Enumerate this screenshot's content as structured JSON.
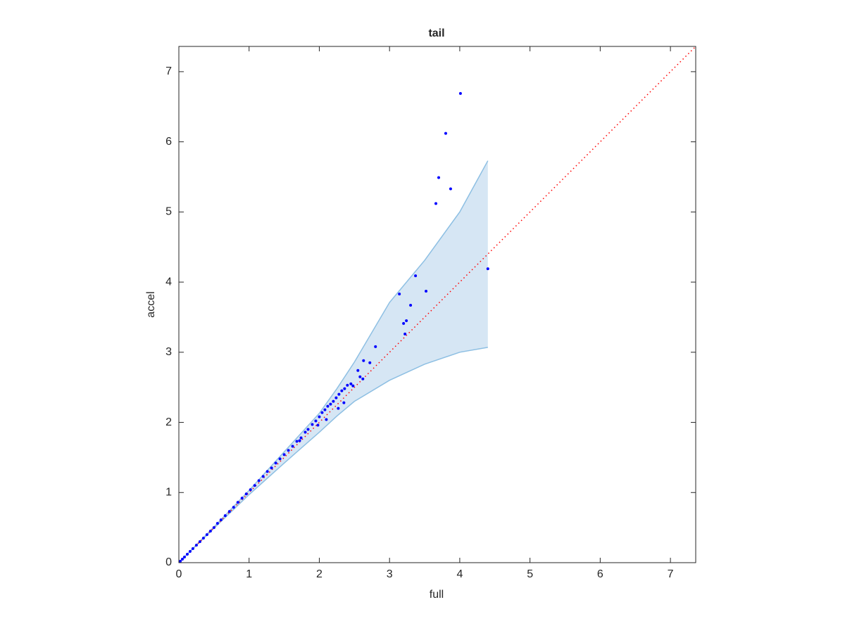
{
  "chart_data": {
    "type": "scatter",
    "title": "tail",
    "x_label": "full",
    "y_label": "accel",
    "xlim": [
      0,
      7.36
    ],
    "ylim": [
      0,
      7.36
    ],
    "xticks": [
      0,
      1,
      2,
      3,
      4,
      5,
      6,
      7
    ],
    "yticks": [
      0,
      1,
      2,
      3,
      4,
      5,
      6,
      7
    ],
    "grid": false,
    "color": "#0000ff",
    "x": [
      0.02,
      0.05,
      0.08,
      0.12,
      0.16,
      0.2,
      0.25,
      0.3,
      0.35,
      0.4,
      0.45,
      0.5,
      0.55,
      0.6,
      0.66,
      0.72,
      0.78,
      0.84,
      0.9,
      0.96,
      1.02,
      1.08,
      1.14,
      1.2,
      1.26,
      1.32,
      1.38,
      1.44,
      1.5,
      1.56,
      1.62,
      1.68,
      1.74,
      1.8,
      1.84,
      1.9,
      1.95,
      2.0,
      2.04,
      2.08,
      2.12,
      2.16,
      2.2,
      2.24,
      2.28,
      2.32,
      2.36,
      2.4,
      2.45,
      2.48,
      2.55,
      2.58,
      2.62,
      2.63,
      2.72,
      2.8,
      3.14,
      3.2,
      3.22,
      3.24,
      3.3,
      3.37,
      3.52,
      3.66,
      3.7,
      3.8,
      3.87,
      4.01,
      4.4,
      1.72,
      1.98,
      2.1,
      2.27,
      2.35
    ],
    "y": [
      0.02,
      0.05,
      0.08,
      0.12,
      0.16,
      0.2,
      0.25,
      0.3,
      0.35,
      0.4,
      0.45,
      0.5,
      0.56,
      0.61,
      0.67,
      0.73,
      0.79,
      0.86,
      0.92,
      0.98,
      1.04,
      1.1,
      1.17,
      1.23,
      1.3,
      1.35,
      1.42,
      1.48,
      1.54,
      1.6,
      1.66,
      1.73,
      1.78,
      1.86,
      1.9,
      1.97,
      2.02,
      2.08,
      2.14,
      2.18,
      2.23,
      2.26,
      2.3,
      2.35,
      2.4,
      2.45,
      2.48,
      2.53,
      2.55,
      2.52,
      2.74,
      2.65,
      2.62,
      2.88,
      2.85,
      3.08,
      3.83,
      3.41,
      3.26,
      3.45,
      3.67,
      4.09,
      3.87,
      5.12,
      5.49,
      6.12,
      5.33,
      6.69,
      4.19,
      1.74,
      1.96,
      2.04,
      2.2,
      2.28
    ],
    "band": {
      "color": "#d6e6f4",
      "line_color": "#8dbfe3",
      "x": [
        0,
        0.5,
        1,
        1.5,
        2,
        2.25,
        2.5,
        3,
        3.5,
        4,
        4.4
      ],
      "upper": [
        0,
        0.51,
        1.03,
        1.58,
        2.13,
        2.48,
        2.86,
        3.71,
        4.31,
        5.0,
        5.73
      ],
      "lower": [
        0,
        0.49,
        0.97,
        1.42,
        1.86,
        2.09,
        2.3,
        2.6,
        2.83,
        3.0,
        3.07
      ]
    },
    "reference_line": {
      "color": "#ff0000",
      "x": [
        0,
        7.36
      ],
      "y": [
        0,
        7.36
      ]
    }
  }
}
